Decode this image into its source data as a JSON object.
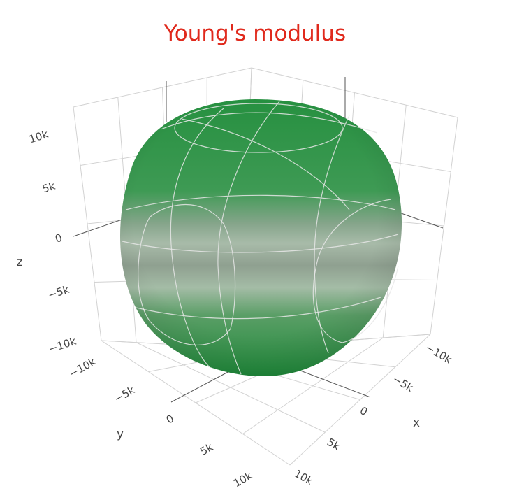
{
  "chart_data": {
    "type": "surface3d",
    "title": "Young's modulus",
    "title_color": "#e0291c",
    "surface_color": "#269040",
    "highlight_color": "#9ebfa0",
    "axes": {
      "x": {
        "label": "x",
        "ticks": [
          "−10k",
          "−5k",
          "0",
          "5k",
          "10k"
        ],
        "tick_values": [
          -10000,
          -5000,
          0,
          5000,
          10000
        ]
      },
      "y": {
        "label": "y",
        "ticks": [
          "−10k",
          "−5k",
          "0",
          "5k",
          "10k"
        ],
        "tick_values": [
          -10000,
          -5000,
          0,
          5000,
          10000
        ]
      },
      "z": {
        "label": "z",
        "ticks": [
          "−10k",
          "−5k",
          "0",
          "5k",
          "10k"
        ],
        "tick_values": [
          -10000,
          -5000,
          0,
          5000,
          10000
        ]
      }
    },
    "grid": true
  }
}
